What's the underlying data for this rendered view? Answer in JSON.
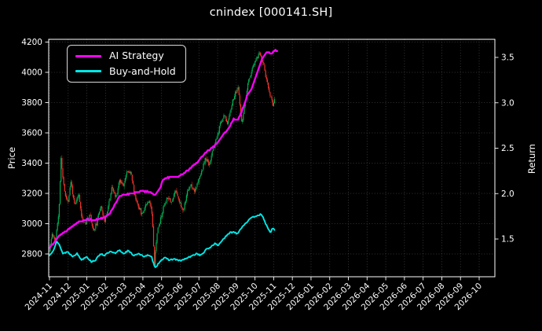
{
  "chart_data": {
    "type": "candlestick+line",
    "title": "cnindex [000141.SH]",
    "ylabel_left": "Price",
    "ylabel_right": "Return",
    "grid": true,
    "legend_position": "upper left",
    "x_tick_labels": [
      "2024-11",
      "2024-12",
      "2025-01",
      "2025-02",
      "2025-03",
      "2025-04",
      "2025-05",
      "2025-06",
      "2025-07",
      "2025-08",
      "2025-09",
      "2025-10",
      "2025-11",
      "2025-12",
      "2026-01",
      "2026-02",
      "2026-03",
      "2026-04",
      "2026-05",
      "2026-06",
      "2026-07",
      "2026-08",
      "2026-09",
      "2026-10"
    ],
    "y_left_ticks": [
      2800,
      3000,
      3200,
      3400,
      3600,
      3800,
      4000,
      4200
    ],
    "y_right_ticks": [
      1.5,
      2.0,
      2.5,
      3.0,
      3.5
    ],
    "y_left_range": [
      2650,
      4216
    ],
    "y_right_range": [
      1.08,
      3.7
    ],
    "x_range_months": [
      -0.05,
      23.85
    ],
    "colors": {
      "background": "#000000",
      "text": "#ffffff",
      "border": "#ffffff",
      "grid": "#7a7a7a",
      "candle_up": "#00b055",
      "candle_down": "#f0342c",
      "ai_strategy": "#ff00ff",
      "buy_and_hold": "#00e8e8"
    },
    "legend": [
      {
        "label": "AI Strategy",
        "color": "#ff00ff"
      },
      {
        "label": "Buy-and-Hold",
        "color": "#00e8e8"
      }
    ],
    "series": {
      "ai_strategy": {
        "axis": "right",
        "points": [
          [
            0.0,
            1.4
          ],
          [
            0.5,
            1.53
          ],
          [
            0.97,
            1.6
          ],
          [
            1.47,
            1.68
          ],
          [
            1.98,
            1.72
          ],
          [
            2.48,
            1.71
          ],
          [
            2.94,
            1.74
          ],
          [
            3.24,
            1.78
          ],
          [
            3.45,
            1.86
          ],
          [
            3.74,
            1.97
          ],
          [
            3.95,
            1.99
          ],
          [
            4.42,
            2.0
          ],
          [
            4.92,
            2.03
          ],
          [
            5.42,
            2.02
          ],
          [
            5.63,
            1.98
          ],
          [
            5.89,
            2.05
          ],
          [
            6.1,
            2.16
          ],
          [
            6.39,
            2.18
          ],
          [
            6.9,
            2.19
          ],
          [
            7.23,
            2.23
          ],
          [
            7.65,
            2.3
          ],
          [
            7.86,
            2.33
          ],
          [
            8.2,
            2.42
          ],
          [
            8.49,
            2.47
          ],
          [
            8.83,
            2.53
          ],
          [
            9.12,
            2.59
          ],
          [
            9.33,
            2.66
          ],
          [
            9.55,
            2.7
          ],
          [
            9.84,
            2.82
          ],
          [
            10.09,
            2.81
          ],
          [
            10.39,
            2.96
          ],
          [
            10.6,
            3.09
          ],
          [
            10.81,
            3.16
          ],
          [
            11.02,
            3.27
          ],
          [
            11.23,
            3.4
          ],
          [
            11.44,
            3.51
          ],
          [
            11.65,
            3.56
          ],
          [
            11.86,
            3.54
          ],
          [
            12.07,
            3.58
          ],
          [
            12.2,
            3.57
          ]
        ]
      },
      "buy_and_hold": {
        "axis": "right",
        "points": [
          [
            0.0,
            1.32
          ],
          [
            0.21,
            1.38
          ],
          [
            0.38,
            1.47
          ],
          [
            0.55,
            1.43
          ],
          [
            0.71,
            1.34
          ],
          [
            0.97,
            1.36
          ],
          [
            1.22,
            1.31
          ],
          [
            1.47,
            1.34
          ],
          [
            1.72,
            1.27
          ],
          [
            1.98,
            1.31
          ],
          [
            2.23,
            1.25
          ],
          [
            2.48,
            1.27
          ],
          [
            2.73,
            1.34
          ],
          [
            2.94,
            1.32
          ],
          [
            3.24,
            1.36
          ],
          [
            3.53,
            1.34
          ],
          [
            3.74,
            1.38
          ],
          [
            3.95,
            1.34
          ],
          [
            4.21,
            1.37
          ],
          [
            4.5,
            1.32
          ],
          [
            4.75,
            1.34
          ],
          [
            5.0,
            1.31
          ],
          [
            5.26,
            1.32
          ],
          [
            5.47,
            1.3
          ],
          [
            5.63,
            1.19
          ],
          [
            5.76,
            1.21
          ],
          [
            5.97,
            1.27
          ],
          [
            6.18,
            1.29
          ],
          [
            6.43,
            1.27
          ],
          [
            6.69,
            1.28
          ],
          [
            6.94,
            1.26
          ],
          [
            7.15,
            1.27
          ],
          [
            7.36,
            1.29
          ],
          [
            7.61,
            1.31
          ],
          [
            7.86,
            1.34
          ],
          [
            8.12,
            1.32
          ],
          [
            8.37,
            1.38
          ],
          [
            8.62,
            1.41
          ],
          [
            8.83,
            1.45
          ],
          [
            9.04,
            1.43
          ],
          [
            9.25,
            1.49
          ],
          [
            9.46,
            1.53
          ],
          [
            9.67,
            1.57
          ],
          [
            9.84,
            1.58
          ],
          [
            10.05,
            1.56
          ],
          [
            10.26,
            1.62
          ],
          [
            10.47,
            1.67
          ],
          [
            10.68,
            1.71
          ],
          [
            10.89,
            1.74
          ],
          [
            11.1,
            1.76
          ],
          [
            11.31,
            1.77
          ],
          [
            11.48,
            1.72
          ],
          [
            11.65,
            1.63
          ],
          [
            11.82,
            1.57
          ],
          [
            11.94,
            1.62
          ],
          [
            12.07,
            1.6
          ]
        ]
      }
    },
    "candles": {
      "axis": "left",
      "days_per_month": 21,
      "end_month": 12.1,
      "seed": 11,
      "daily_noise": 13,
      "wick_extra": 18,
      "close_path": [
        [
          0.0,
          2820
        ],
        [
          0.15,
          2940
        ],
        [
          0.3,
          2880
        ],
        [
          0.5,
          3060
        ],
        [
          0.62,
          3430
        ],
        [
          0.72,
          3300
        ],
        [
          0.85,
          3180
        ],
        [
          1.0,
          3150
        ],
        [
          1.15,
          3280
        ],
        [
          1.35,
          3110
        ],
        [
          1.55,
          3200
        ],
        [
          1.75,
          3030
        ],
        [
          1.95,
          3000
        ],
        [
          2.15,
          3070
        ],
        [
          2.35,
          2950
        ],
        [
          2.55,
          3010
        ],
        [
          2.75,
          3130
        ],
        [
          2.95,
          3010
        ],
        [
          3.15,
          3120
        ],
        [
          3.35,
          3240
        ],
        [
          3.55,
          3170
        ],
        [
          3.75,
          3290
        ],
        [
          3.95,
          3260
        ],
        [
          4.15,
          3340
        ],
        [
          4.35,
          3350
        ],
        [
          4.55,
          3190
        ],
        [
          4.75,
          3120
        ],
        [
          4.95,
          3060
        ],
        [
          5.15,
          3130
        ],
        [
          5.35,
          3160
        ],
        [
          5.5,
          3050
        ],
        [
          5.62,
          2735
        ],
        [
          5.75,
          2940
        ],
        [
          5.95,
          3030
        ],
        [
          6.15,
          3130
        ],
        [
          6.35,
          3180
        ],
        [
          6.55,
          3140
        ],
        [
          6.75,
          3230
        ],
        [
          6.95,
          3150
        ],
        [
          7.15,
          3080
        ],
        [
          7.35,
          3200
        ],
        [
          7.55,
          3260
        ],
        [
          7.75,
          3220
        ],
        [
          7.95,
          3270
        ],
        [
          8.15,
          3350
        ],
        [
          8.35,
          3430
        ],
        [
          8.55,
          3390
        ],
        [
          8.75,
          3490
        ],
        [
          8.95,
          3560
        ],
        [
          9.15,
          3660
        ],
        [
          9.35,
          3720
        ],
        [
          9.55,
          3660
        ],
        [
          9.75,
          3790
        ],
        [
          9.95,
          3860
        ],
        [
          10.1,
          3900
        ],
        [
          10.28,
          3660
        ],
        [
          10.45,
          3780
        ],
        [
          10.65,
          3940
        ],
        [
          10.85,
          4020
        ],
        [
          11.05,
          4080
        ],
        [
          11.25,
          4130
        ],
        [
          11.45,
          4060
        ],
        [
          11.6,
          3960
        ],
        [
          11.8,
          3850
        ],
        [
          11.95,
          3790
        ],
        [
          12.1,
          3845
        ]
      ],
      "monthly_ohlc": [
        {
          "month": "2024-11",
          "open": 2810,
          "high": 3450,
          "low": 2750,
          "close": 3150
        },
        {
          "month": "2024-12",
          "open": 3150,
          "high": 3320,
          "low": 2960,
          "close": 3060
        },
        {
          "month": "2025-01",
          "open": 3060,
          "high": 3160,
          "low": 2910,
          "close": 3000
        },
        {
          "month": "2025-02",
          "open": 3000,
          "high": 3300,
          "low": 2960,
          "close": 3260
        },
        {
          "month": "2025-03",
          "open": 3260,
          "high": 3390,
          "low": 3060,
          "close": 3090
        },
        {
          "month": "2025-04",
          "open": 3090,
          "high": 3260,
          "low": 2700,
          "close": 3020
        },
        {
          "month": "2025-05",
          "open": 3020,
          "high": 3230,
          "low": 2980,
          "close": 3180
        },
        {
          "month": "2025-06",
          "open": 3180,
          "high": 3300,
          "low": 3050,
          "close": 3230
        },
        {
          "month": "2025-07",
          "open": 3230,
          "high": 3460,
          "low": 3120,
          "close": 3430
        },
        {
          "month": "2025-08",
          "open": 3430,
          "high": 3720,
          "low": 3360,
          "close": 3680
        },
        {
          "month": "2025-09",
          "open": 3680,
          "high": 3960,
          "low": 3580,
          "close": 3820
        },
        {
          "month": "2025-10",
          "open": 3820,
          "high": 4160,
          "low": 3640,
          "close": 4090
        },
        {
          "month": "2025-11",
          "open": 4090,
          "high": 4140,
          "low": 3770,
          "close": 3840
        }
      ]
    }
  }
}
